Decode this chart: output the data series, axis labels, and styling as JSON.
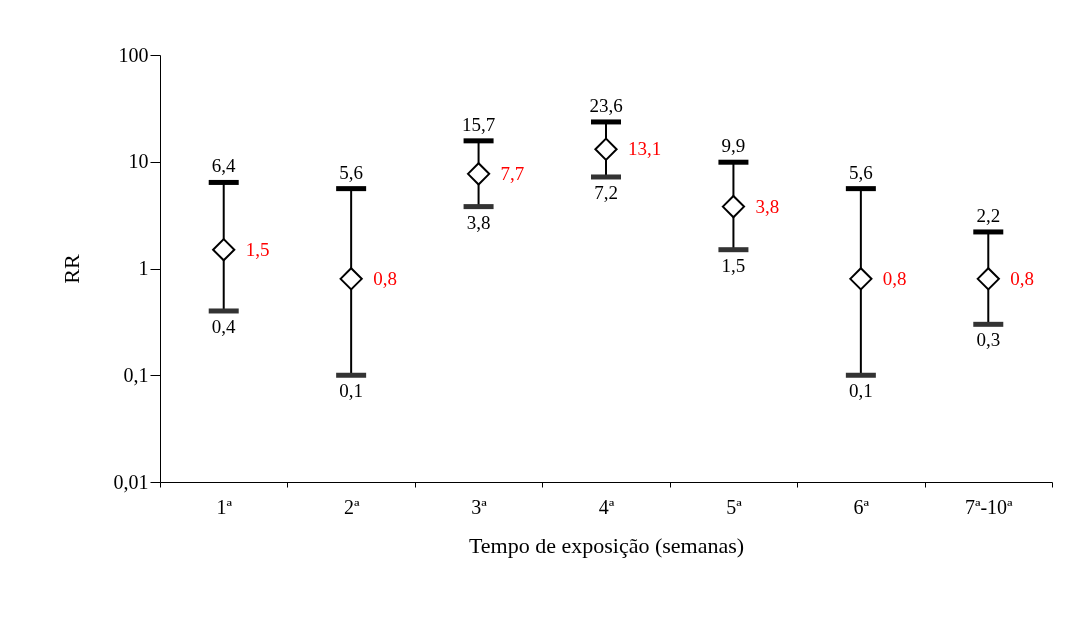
{
  "chart_data": {
    "type": "scatter",
    "xlabel": "Tempo de exposição (semanas)",
    "ylabel": "RR",
    "categories": [
      "1ª",
      "2ª",
      "3ª",
      "4ª",
      "5ª",
      "6ª",
      "7ª-10ª"
    ],
    "series": [
      {
        "color": "#000000",
        "values": [
          1.5,
          0.8,
          7.7,
          13.1,
          3.8,
          0.8,
          0.8
        ],
        "errors": [
          [
            0.4,
            6.4
          ],
          [
            0.1,
            5.6
          ],
          [
            3.8,
            15.7
          ],
          [
            7.2,
            23.6
          ],
          [
            1.5,
            9.9
          ],
          [
            0.1,
            5.6
          ],
          [
            0.3,
            2.2
          ]
        ],
        "value_labels": [
          "1,5",
          "0,8",
          "7,7",
          "13,1",
          "3,8",
          "0,8",
          "0,8"
        ]
      }
    ],
    "annotations": [
      {
        "text": "6,4",
        "x": "1ª",
        "y": 6.4
      },
      {
        "text": "0,4",
        "x": "1ª",
        "y": 0.4
      },
      {
        "text": "5,6",
        "x": "2ª",
        "y": 5.6
      },
      {
        "text": "0,1",
        "x": "2ª",
        "y": 0.1
      },
      {
        "text": "15,7",
        "x": "3ª",
        "y": 15.7
      },
      {
        "text": "3,8",
        "x": "3ª",
        "y": 3.8
      },
      {
        "text": "23,6",
        "x": "4ª",
        "y": 23.6
      },
      {
        "text": "7,2",
        "x": "4ª",
        "y": 7.2
      },
      {
        "text": "9,9",
        "x": "5ª",
        "y": 9.9
      },
      {
        "text": "1,5",
        "x": "5ª",
        "y": 1.5
      },
      {
        "text": "5,6",
        "x": "6ª",
        "y": 5.6
      },
      {
        "text": "0,1",
        "x": "6ª",
        "y": 0.1
      },
      {
        "text": "2,2",
        "x": "7ª-10ª",
        "y": 2.2
      },
      {
        "text": "0,3",
        "x": "7ª-10ª",
        "y": 0.3
      }
    ],
    "log": true,
    "ylim": [
      0.01,
      100
    ],
    "yticks": [
      {
        "value": 0.01,
        "label": "0,01"
      },
      {
        "value": 0.1,
        "label": "0,1"
      },
      1,
      10,
      100
    ],
    "marker": "diamond",
    "grid": false
  }
}
